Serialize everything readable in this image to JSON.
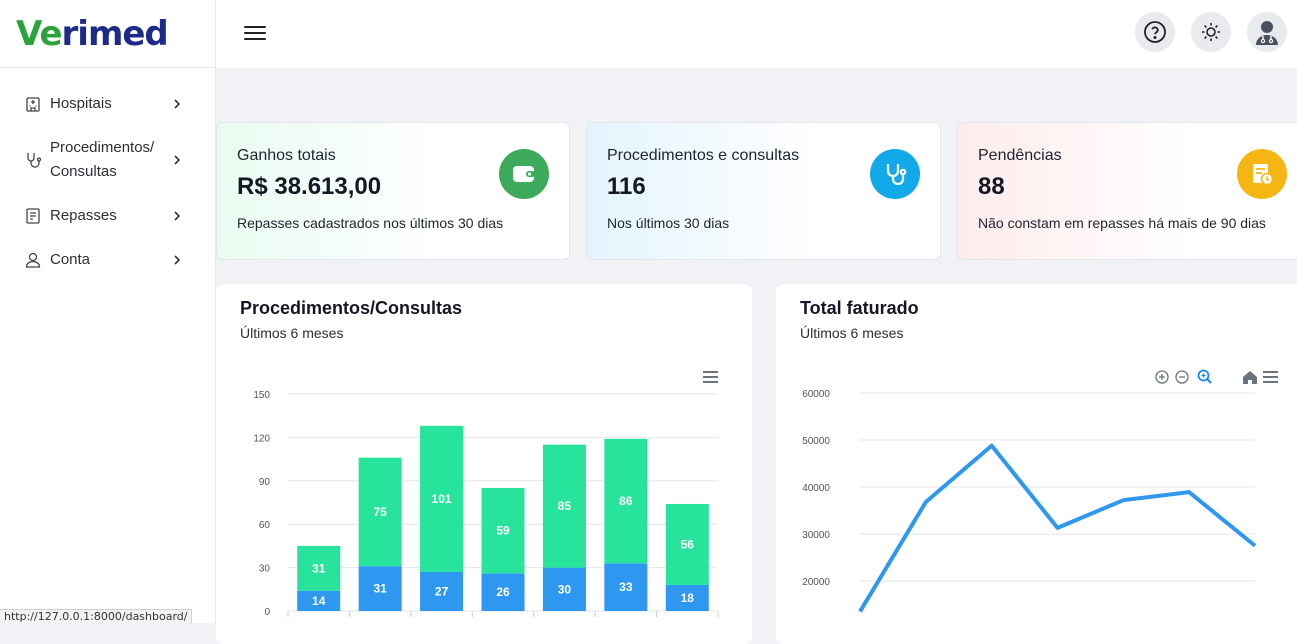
{
  "brand": {
    "prefix": "Ve",
    "rest": "rimed"
  },
  "sidebar": {
    "items": [
      {
        "label": "Hospitais",
        "icon": "hospital-icon"
      },
      {
        "label": "Procedimentos/\nConsultas",
        "icon": "stethoscope-icon"
      },
      {
        "label": "Repasses",
        "icon": "receipt-icon"
      },
      {
        "label": "Conta",
        "icon": "user-icon"
      }
    ]
  },
  "topbar": {
    "icons": [
      "help-icon",
      "theme-toggle-icon",
      "doctor-avatar-icon"
    ]
  },
  "cards": [
    {
      "title": "Ganhos totais",
      "value": "R$ 38.613,00",
      "desc": "Repasses cadastrados nos últimos 30 dias",
      "icon": "wallet-icon",
      "icon_color": "#3daa5c"
    },
    {
      "title": "Procedimentos e consultas",
      "value": "116",
      "desc": "Nos últimos 30 dias",
      "icon": "stethoscope-icon",
      "icon_color": "#12a9e8"
    },
    {
      "title": "Pendências",
      "value": "88",
      "desc": "Não constam em repasses há mais de 90 dias",
      "icon": "pending-receipt-icon",
      "icon_color": "#f5b512"
    }
  ],
  "panels": {
    "procedures": {
      "title": "Procedimentos/Consultas",
      "subtitle": "Últimos 6 meses"
    },
    "revenue": {
      "title": "Total faturado",
      "subtitle": "Últimos 6 meses"
    }
  },
  "status_url": "http://127.0.0.1:8000/dashboard/",
  "chart_data": [
    {
      "type": "bar",
      "stacked": true,
      "title": "Procedimentos/Consultas",
      "subtitle": "Últimos 6 meses",
      "ylim": [
        0,
        150
      ],
      "yticks": [
        0,
        30,
        60,
        90,
        120,
        150
      ],
      "grid": true,
      "series": [
        {
          "values": [
            14,
            31,
            27,
            26,
            30,
            33,
            18
          ],
          "color": "#2e97f0"
        },
        {
          "values": [
            31,
            75,
            101,
            59,
            85,
            86,
            56
          ],
          "color": "#28e39c"
        }
      ]
    },
    {
      "type": "line",
      "title": "Total faturado",
      "subtitle": "Últimos 6 meses",
      "ylim": [
        16000,
        60000
      ],
      "yticks": [
        20000,
        30000,
        40000,
        50000,
        60000
      ],
      "grid": true,
      "series": [
        {
          "values": [
            13500,
            36800,
            48800,
            31300,
            37200,
            38900,
            27500
          ],
          "color": "#2e97f0"
        }
      ]
    }
  ]
}
